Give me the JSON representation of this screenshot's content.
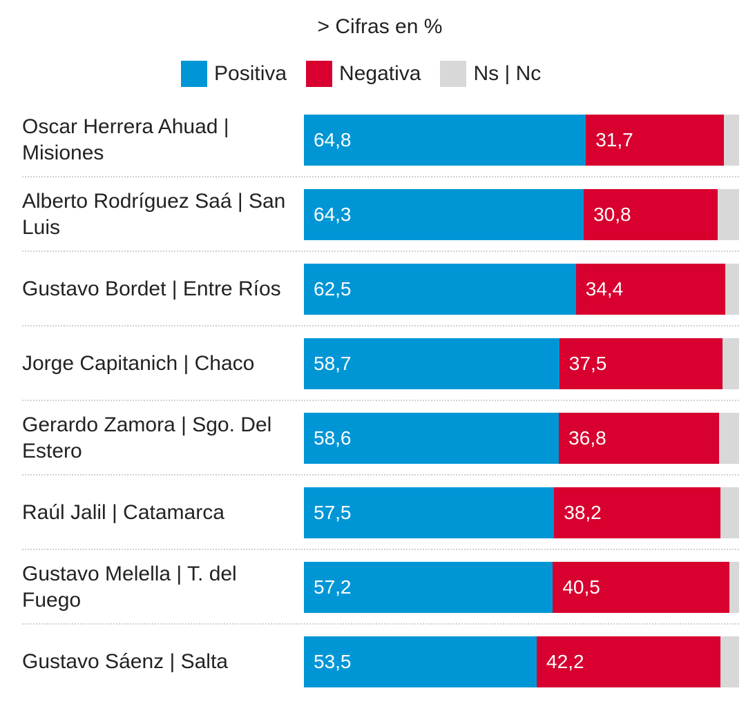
{
  "subtitle": "> Cifras en %",
  "legend": [
    {
      "label": "Positiva",
      "color": "#0096d6"
    },
    {
      "label": "Negativa",
      "color": "#d7002f"
    },
    {
      "label": "Ns | Nc",
      "color": "#d8d8d8"
    }
  ],
  "chart_data": {
    "type": "bar",
    "orientation": "horizontal",
    "stacked": true,
    "title": "",
    "subtitle": "> Cifras en %",
    "xlim": [
      0,
      100
    ],
    "categories": [
      "Oscar Herrera Ahuad | Misiones",
      "Alberto Rodríguez Saá | San Luis",
      "Gustavo Bordet | Entre Ríos",
      "Jorge Capitanich | Chaco",
      "Gerardo Zamora | Sgo. Del Estero",
      "Raúl Jalil | Catamarca",
      "Gustavo Melella | T. del Fuego",
      "Gustavo Sáenz | Salta"
    ],
    "series": [
      {
        "name": "Positiva",
        "color": "#0096d6",
        "values": [
          64.8,
          64.3,
          62.5,
          58.7,
          58.6,
          57.5,
          57.2,
          53.5
        ],
        "labels": [
          "64,8",
          "64,3",
          "62,5",
          "58,7",
          "58,6",
          "57,5",
          "57,2",
          "53,5"
        ]
      },
      {
        "name": "Negativa",
        "color": "#d7002f",
        "values": [
          31.7,
          30.8,
          34.4,
          37.5,
          36.8,
          38.2,
          40.5,
          42.2
        ],
        "labels": [
          "31,7",
          "30,8",
          "34,4",
          "37,5",
          "36,8",
          "38,2",
          "40,5",
          "42,2"
        ]
      },
      {
        "name": "Ns | Nc",
        "color": "#d8d8d8",
        "values": [
          3.5,
          4.9,
          3.1,
          3.8,
          4.6,
          4.3,
          2.3,
          4.3
        ]
      }
    ],
    "legend_position": "top-center",
    "grid": false
  }
}
